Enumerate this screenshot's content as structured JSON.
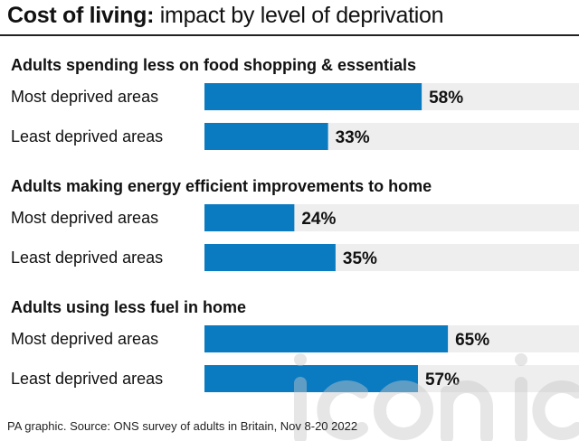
{
  "title_bold": "Cost of living:",
  "title_rest": " impact by level of deprivation",
  "footer": "PA graphic. Source: ONS survey of adults in Britain, Nov 8-20 2022",
  "watermark": "iconic",
  "colors": {
    "bar": "#0a7bc1",
    "track": "#eeeeee",
    "text": "#111111",
    "watermark": "#c8c8c8"
  },
  "chart_data": {
    "type": "bar",
    "orientation": "horizontal",
    "value_unit": "%",
    "xlim": [
      0,
      100
    ],
    "grid": false,
    "groups": [
      {
        "title": "Adults spending less on food shopping & essentials",
        "categories": [
          "Most deprived areas",
          "Least deprived areas"
        ],
        "values": [
          58,
          33
        ],
        "labels": [
          "58%",
          "33%"
        ]
      },
      {
        "title": "Adults making energy efficient improvements to home",
        "categories": [
          "Most deprived areas",
          "Least deprived areas"
        ],
        "values": [
          24,
          35
        ],
        "labels": [
          "24%",
          "35%"
        ]
      },
      {
        "title": "Adults using less fuel in home",
        "categories": [
          "Most deprived areas",
          "Least deprived areas"
        ],
        "values": [
          65,
          57
        ],
        "labels": [
          "65%",
          "57%"
        ]
      }
    ]
  }
}
